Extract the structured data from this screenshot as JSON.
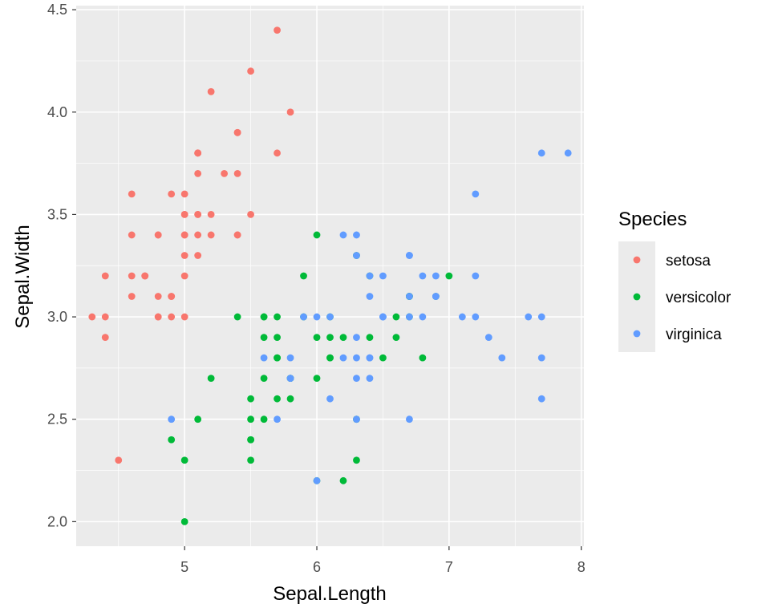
{
  "chart_data": {
    "type": "scatter",
    "title": "",
    "xlabel": "Sepal.Length",
    "ylabel": "Sepal.Width",
    "xlim": [
      4.18,
      8.02
    ],
    "ylim": [
      1.88,
      4.52
    ],
    "xticks": [
      5,
      6,
      7,
      8
    ],
    "xtick_labels": [
      "5",
      "6",
      "7",
      "8"
    ],
    "yticks": [
      2.0,
      2.5,
      3.0,
      3.5,
      4.0,
      4.5
    ],
    "ytick_labels": [
      "2.0",
      "2.5",
      "3.0",
      "3.5",
      "4.0",
      "4.5"
    ],
    "grid": true,
    "legend": {
      "title": "Species",
      "position": "right"
    },
    "series": [
      {
        "name": "setosa",
        "color": "#F8766D",
        "points": [
          [
            5.1,
            3.5
          ],
          [
            4.9,
            3.0
          ],
          [
            4.7,
            3.2
          ],
          [
            4.6,
            3.1
          ],
          [
            5.0,
            3.6
          ],
          [
            5.4,
            3.9
          ],
          [
            4.6,
            3.4
          ],
          [
            5.0,
            3.4
          ],
          [
            4.4,
            2.9
          ],
          [
            4.9,
            3.1
          ],
          [
            5.4,
            3.7
          ],
          [
            4.8,
            3.4
          ],
          [
            4.8,
            3.0
          ],
          [
            4.3,
            3.0
          ],
          [
            5.8,
            4.0
          ],
          [
            5.7,
            4.4
          ],
          [
            5.4,
            3.9
          ],
          [
            5.1,
            3.5
          ],
          [
            5.7,
            3.8
          ],
          [
            5.1,
            3.8
          ],
          [
            5.4,
            3.4
          ],
          [
            5.1,
            3.7
          ],
          [
            4.6,
            3.6
          ],
          [
            5.1,
            3.3
          ],
          [
            4.8,
            3.4
          ],
          [
            5.0,
            3.0
          ],
          [
            5.0,
            3.4
          ],
          [
            5.2,
            3.5
          ],
          [
            5.2,
            3.4
          ],
          [
            4.7,
            3.2
          ],
          [
            4.8,
            3.1
          ],
          [
            5.4,
            3.4
          ],
          [
            5.2,
            4.1
          ],
          [
            5.5,
            4.2
          ],
          [
            4.9,
            3.1
          ],
          [
            5.0,
            3.2
          ],
          [
            5.5,
            3.5
          ],
          [
            4.9,
            3.6
          ],
          [
            4.4,
            3.0
          ],
          [
            5.1,
            3.4
          ],
          [
            5.0,
            3.5
          ],
          [
            4.5,
            2.3
          ],
          [
            4.4,
            3.2
          ],
          [
            5.0,
            3.5
          ],
          [
            5.1,
            3.8
          ],
          [
            4.8,
            3.0
          ],
          [
            5.1,
            3.8
          ],
          [
            4.6,
            3.2
          ],
          [
            5.3,
            3.7
          ],
          [
            5.0,
            3.3
          ]
        ]
      },
      {
        "name": "versicolor",
        "color": "#00BA38",
        "points": [
          [
            7.0,
            3.2
          ],
          [
            6.4,
            3.2
          ],
          [
            6.9,
            3.1
          ],
          [
            5.5,
            2.3
          ],
          [
            6.5,
            2.8
          ],
          [
            5.7,
            2.8
          ],
          [
            6.3,
            3.3
          ],
          [
            4.9,
            2.4
          ],
          [
            6.6,
            2.9
          ],
          [
            5.2,
            2.7
          ],
          [
            5.0,
            2.0
          ],
          [
            5.9,
            3.0
          ],
          [
            6.0,
            2.2
          ],
          [
            6.1,
            2.9
          ],
          [
            5.6,
            2.9
          ],
          [
            6.7,
            3.1
          ],
          [
            5.6,
            3.0
          ],
          [
            5.8,
            2.7
          ],
          [
            6.2,
            2.2
          ],
          [
            5.6,
            2.5
          ],
          [
            5.9,
            3.2
          ],
          [
            6.1,
            2.8
          ],
          [
            6.3,
            2.5
          ],
          [
            6.1,
            2.8
          ],
          [
            6.4,
            2.9
          ],
          [
            6.6,
            3.0
          ],
          [
            6.8,
            2.8
          ],
          [
            6.7,
            3.0
          ],
          [
            6.0,
            2.9
          ],
          [
            5.7,
            2.6
          ],
          [
            5.5,
            2.4
          ],
          [
            5.5,
            2.4
          ],
          [
            5.8,
            2.7
          ],
          [
            6.0,
            2.7
          ],
          [
            5.4,
            3.0
          ],
          [
            6.0,
            3.4
          ],
          [
            6.7,
            3.1
          ],
          [
            6.3,
            2.3
          ],
          [
            5.6,
            3.0
          ],
          [
            5.5,
            2.5
          ],
          [
            5.5,
            2.6
          ],
          [
            6.1,
            3.0
          ],
          [
            5.8,
            2.6
          ],
          [
            5.0,
            2.3
          ],
          [
            5.6,
            2.7
          ],
          [
            5.7,
            3.0
          ],
          [
            5.7,
            2.9
          ],
          [
            6.2,
            2.9
          ],
          [
            5.1,
            2.5
          ],
          [
            5.7,
            2.8
          ]
        ]
      },
      {
        "name": "virginica",
        "color": "#619CFF",
        "points": [
          [
            6.3,
            3.3
          ],
          [
            5.8,
            2.7
          ],
          [
            7.1,
            3.0
          ],
          [
            6.3,
            2.9
          ],
          [
            6.5,
            3.0
          ],
          [
            7.6,
            3.0
          ],
          [
            4.9,
            2.5
          ],
          [
            7.3,
            2.9
          ],
          [
            6.7,
            2.5
          ],
          [
            7.2,
            3.6
          ],
          [
            6.5,
            3.2
          ],
          [
            6.4,
            2.7
          ],
          [
            6.8,
            3.0
          ],
          [
            5.7,
            2.5
          ],
          [
            5.8,
            2.8
          ],
          [
            6.4,
            3.2
          ],
          [
            6.5,
            3.0
          ],
          [
            7.7,
            3.8
          ],
          [
            7.7,
            2.6
          ],
          [
            6.0,
            2.2
          ],
          [
            6.9,
            3.2
          ],
          [
            5.6,
            2.8
          ],
          [
            7.7,
            2.8
          ],
          [
            6.3,
            2.7
          ],
          [
            6.7,
            3.3
          ],
          [
            7.2,
            3.2
          ],
          [
            6.2,
            2.8
          ],
          [
            6.1,
            3.0
          ],
          [
            6.4,
            2.8
          ],
          [
            7.2,
            3.0
          ],
          [
            7.4,
            2.8
          ],
          [
            7.9,
            3.8
          ],
          [
            6.4,
            2.8
          ],
          [
            6.3,
            2.8
          ],
          [
            6.1,
            2.6
          ],
          [
            7.7,
            3.0
          ],
          [
            6.3,
            3.4
          ],
          [
            6.4,
            3.1
          ],
          [
            6.0,
            3.0
          ],
          [
            6.9,
            3.1
          ],
          [
            6.7,
            3.1
          ],
          [
            6.9,
            3.1
          ],
          [
            5.8,
            2.7
          ],
          [
            6.8,
            3.2
          ],
          [
            6.7,
            3.3
          ],
          [
            6.7,
            3.0
          ],
          [
            6.3,
            2.5
          ],
          [
            6.5,
            3.0
          ],
          [
            6.2,
            3.4
          ],
          [
            5.9,
            3.0
          ]
        ]
      }
    ]
  }
}
